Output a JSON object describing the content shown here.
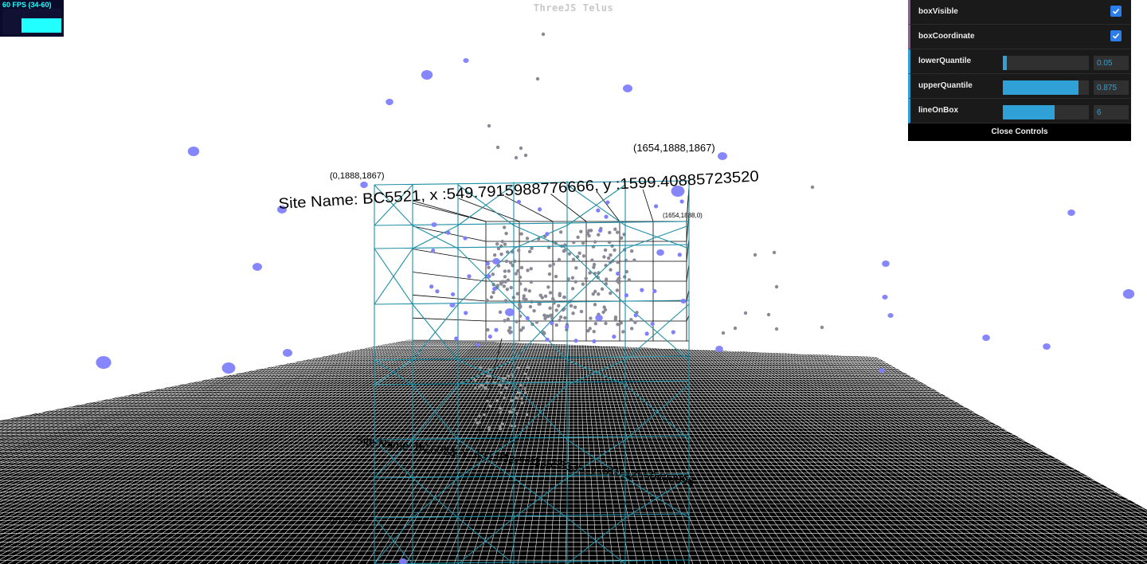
{
  "title": "ThreeJS Telus",
  "stats": {
    "label": "60 FPS (34-60)"
  },
  "labels": {
    "corner_top_left": "(0,1888,1867)",
    "corner_top_right": "(1654,1888,1867)",
    "corner_inner": "(1654,1888,0)",
    "corner_bottom_left": "(0,0,1867)",
    "site_label_top": "Site Name: BC5521, x :549.7915988776666, y :1599.40885723520",
    "site_label_bottom": "Site Name: BC5083, x :431.85226833533335, y :810.12550433896"
  },
  "controls": {
    "boxVisible": {
      "label": "boxVisible",
      "checked": true
    },
    "boxCoordinate": {
      "label": "boxCoordinate",
      "checked": true
    },
    "lowerQuantile": {
      "label": "lowerQuantile",
      "value": "0.05",
      "fraction": 0.05
    },
    "upperQuantile": {
      "label": "upperQuantile",
      "value": "0.875",
      "fraction": 0.875
    },
    "lineOnBox": {
      "label": "lineOnBox",
      "value": "6",
      "fraction": 0.6
    },
    "close_label": "Close Controls"
  },
  "colors": {
    "box_line": "#1e8fa5",
    "inner_line": "#000000",
    "point_blue": "#8080ff",
    "point_gray": "#8a8a96",
    "panel_accent": "#2fa1d6"
  }
}
